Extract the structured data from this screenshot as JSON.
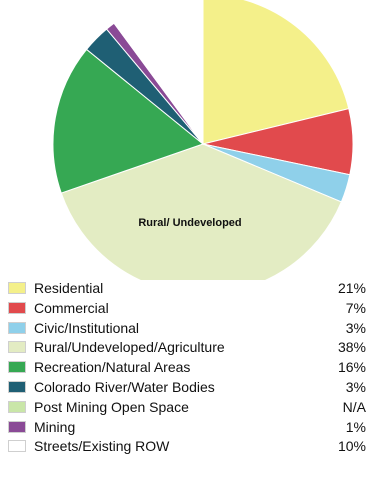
{
  "chart_data": {
    "type": "pie",
    "slice_annotation": "Rural/ Undeveloped",
    "categories": [
      "Residential",
      "Commercial",
      "Civic/Institutional",
      "Rural/Undeveloped/Agriculture",
      "Recreation/Natural Areas",
      "Colorado River/Water Bodies",
      "Post Mining Open Space",
      "Mining",
      "Streets/Existing ROW"
    ],
    "value_labels": [
      "21%",
      "7%",
      "3%",
      "38%",
      "16%",
      "3%",
      "N/A",
      "1%",
      "10%"
    ],
    "values": [
      21,
      7,
      3,
      38,
      16,
      3,
      0,
      1,
      10
    ],
    "colors": [
      "#f4f08a",
      "#e14a4d",
      "#8fd0ea",
      "#e3ecc3",
      "#36a853",
      "#1f5f74",
      "#c9e6a8",
      "#8a4a96",
      "#ffffff"
    ],
    "legend_position": "bottom"
  }
}
